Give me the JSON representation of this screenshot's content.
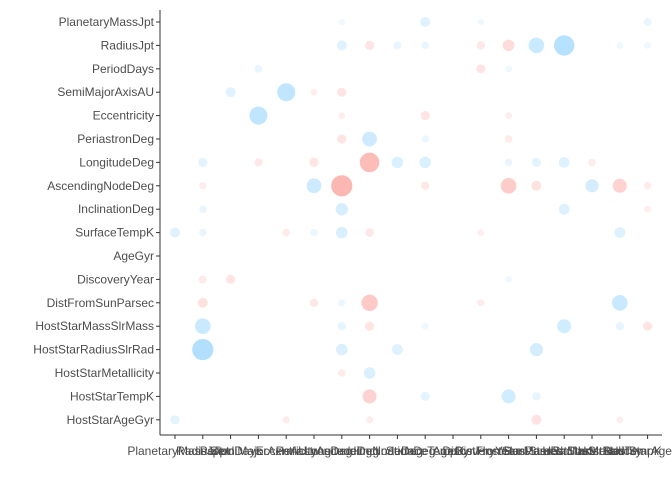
{
  "chart_data": {
    "type": "scatter",
    "title": "",
    "xlabel": "",
    "ylabel": "",
    "grid": false,
    "legend": "none",
    "colors": {
      "negative": "#f8766d",
      "positive": "#6ec3ff"
    },
    "rows": [
      "PlanetaryMassJpt",
      "RadiusJpt",
      "PeriodDays",
      "SemiMajorAxisAU",
      "Eccentricity",
      "PeriastronDeg",
      "LongitudeDeg",
      "AscendingNodeDeg",
      "InclinationDeg",
      "SurfaceTempK",
      "AgeGyr",
      "DiscoveryYear",
      "DistFromSunParsec",
      "HostStarMassSlrMass",
      "HostStarRadiusSlrRad",
      "HostStarMetallicity",
      "HostStarTempK",
      "HostStarAgeGyr"
    ],
    "columns": [
      "PlanetaryMassJpt",
      "RadiusJpt",
      "PeriodDays",
      "SemiMajorAxisAU",
      "Eccentricity",
      "PeriastronDeg",
      "LongitudeDeg",
      "AscendingNodeDeg",
      "InclinationDeg",
      "SurfaceTempK",
      "AgeGyr",
      "DiscoveryYear",
      "DistFromSunParsec",
      "HostStarMassSlrMass",
      "HostStarRadiusSlrRad",
      "HostStarMetallicity",
      "HostStarTempK",
      "HostStarAgeGyr"
    ],
    "points": [
      {
        "row": 0,
        "col": 9,
        "value": 0.25
      },
      {
        "row": 0,
        "col": 17,
        "value": 0.12
      },
      {
        "row": 0,
        "col": 6,
        "value": 0.03
      },
      {
        "row": 0,
        "col": 11,
        "value": 0.03
      },
      {
        "row": 1,
        "col": 6,
        "value": 0.25
      },
      {
        "row": 1,
        "col": 7,
        "value": -0.2
      },
      {
        "row": 1,
        "col": 8,
        "value": 0.12
      },
      {
        "row": 1,
        "col": 9,
        "value": 0.1
      },
      {
        "row": 1,
        "col": 11,
        "value": -0.15
      },
      {
        "row": 1,
        "col": 12,
        "value": -0.35
      },
      {
        "row": 1,
        "col": 13,
        "value": 0.6
      },
      {
        "row": 1,
        "col": 14,
        "value": 0.9
      },
      {
        "row": 1,
        "col": 16,
        "value": 0.05
      },
      {
        "row": 1,
        "col": 17,
        "value": 0.05
      },
      {
        "row": 2,
        "col": 3,
        "value": 0.12
      },
      {
        "row": 2,
        "col": 11,
        "value": -0.2
      },
      {
        "row": 2,
        "col": 12,
        "value": 0.05
      },
      {
        "row": 3,
        "col": 2,
        "value": 0.25
      },
      {
        "row": 3,
        "col": 4,
        "value": 0.75
      },
      {
        "row": 3,
        "col": 5,
        "value": -0.05
      },
      {
        "row": 3,
        "col": 6,
        "value": -0.2
      },
      {
        "row": 4,
        "col": 3,
        "value": 0.75
      },
      {
        "row": 4,
        "col": 6,
        "value": -0.05
      },
      {
        "row": 4,
        "col": 9,
        "value": -0.2
      },
      {
        "row": 4,
        "col": 12,
        "value": -0.05
      },
      {
        "row": 5,
        "col": 6,
        "value": -0.2
      },
      {
        "row": 5,
        "col": 7,
        "value": 0.55
      },
      {
        "row": 5,
        "col": 9,
        "value": 0.08
      },
      {
        "row": 5,
        "col": 12,
        "value": -0.1
      },
      {
        "row": 6,
        "col": 1,
        "value": 0.2
      },
      {
        "row": 6,
        "col": 3,
        "value": -0.15
      },
      {
        "row": 6,
        "col": 5,
        "value": -0.2
      },
      {
        "row": 6,
        "col": 7,
        "value": -0.85
      },
      {
        "row": 6,
        "col": 8,
        "value": 0.35
      },
      {
        "row": 6,
        "col": 9,
        "value": 0.35
      },
      {
        "row": 6,
        "col": 12,
        "value": 0.1
      },
      {
        "row": 6,
        "col": 13,
        "value": 0.2
      },
      {
        "row": 6,
        "col": 14,
        "value": 0.3
      },
      {
        "row": 6,
        "col": 15,
        "value": -0.1
      },
      {
        "row": 7,
        "col": 1,
        "value": -0.08
      },
      {
        "row": 7,
        "col": 5,
        "value": 0.55
      },
      {
        "row": 7,
        "col": 6,
        "value": -0.95
      },
      {
        "row": 7,
        "col": 9,
        "value": -0.15
      },
      {
        "row": 7,
        "col": 12,
        "value": -0.6
      },
      {
        "row": 7,
        "col": 13,
        "value": -0.25
      },
      {
        "row": 7,
        "col": 15,
        "value": 0.45
      },
      {
        "row": 7,
        "col": 16,
        "value": -0.5
      },
      {
        "row": 7,
        "col": 17,
        "value": -0.1
      },
      {
        "row": 8,
        "col": 1,
        "value": 0.1
      },
      {
        "row": 8,
        "col": 6,
        "value": 0.4
      },
      {
        "row": 8,
        "col": 14,
        "value": 0.3
      },
      {
        "row": 8,
        "col": 17,
        "value": -0.05
      },
      {
        "row": 9,
        "col": 0,
        "value": 0.25
      },
      {
        "row": 9,
        "col": 1,
        "value": 0.1
      },
      {
        "row": 9,
        "col": 4,
        "value": -0.1
      },
      {
        "row": 9,
        "col": 5,
        "value": 0.08
      },
      {
        "row": 9,
        "col": 6,
        "value": 0.35
      },
      {
        "row": 9,
        "col": 7,
        "value": -0.15
      },
      {
        "row": 9,
        "col": 11,
        "value": -0.05
      },
      {
        "row": 9,
        "col": 16,
        "value": 0.3
      },
      {
        "row": 11,
        "col": 1,
        "value": -0.12
      },
      {
        "row": 11,
        "col": 2,
        "value": -0.2
      },
      {
        "row": 11,
        "col": 12,
        "value": 0.05
      },
      {
        "row": 12,
        "col": 1,
        "value": -0.25
      },
      {
        "row": 12,
        "col": 5,
        "value": -0.15
      },
      {
        "row": 12,
        "col": 6,
        "value": 0.08
      },
      {
        "row": 12,
        "col": 7,
        "value": -0.65
      },
      {
        "row": 12,
        "col": 11,
        "value": -0.08
      },
      {
        "row": 12,
        "col": 16,
        "value": 0.6
      },
      {
        "row": 13,
        "col": 1,
        "value": 0.6
      },
      {
        "row": 13,
        "col": 6,
        "value": 0.15
      },
      {
        "row": 13,
        "col": 7,
        "value": -0.2
      },
      {
        "row": 13,
        "col": 9,
        "value": 0.05
      },
      {
        "row": 13,
        "col": 14,
        "value": 0.5
      },
      {
        "row": 13,
        "col": 16,
        "value": 0.15
      },
      {
        "row": 13,
        "col": 17,
        "value": -0.2
      },
      {
        "row": 14,
        "col": 1,
        "value": 0.95
      },
      {
        "row": 14,
        "col": 6,
        "value": 0.35
      },
      {
        "row": 14,
        "col": 8,
        "value": 0.3
      },
      {
        "row": 14,
        "col": 13,
        "value": 0.45
      },
      {
        "row": 15,
        "col": 6,
        "value": -0.1
      },
      {
        "row": 15,
        "col": 7,
        "value": 0.35
      },
      {
        "row": 16,
        "col": 7,
        "value": -0.5
      },
      {
        "row": 16,
        "col": 9,
        "value": 0.2
      },
      {
        "row": 16,
        "col": 12,
        "value": 0.5
      },
      {
        "row": 16,
        "col": 13,
        "value": 0.15
      },
      {
        "row": 17,
        "col": 0,
        "value": 0.2
      },
      {
        "row": 17,
        "col": 4,
        "value": -0.08
      },
      {
        "row": 17,
        "col": 7,
        "value": -0.08
      },
      {
        "row": 17,
        "col": 13,
        "value": -0.25
      },
      {
        "row": 17,
        "col": 16,
        "value": -0.05
      }
    ]
  }
}
